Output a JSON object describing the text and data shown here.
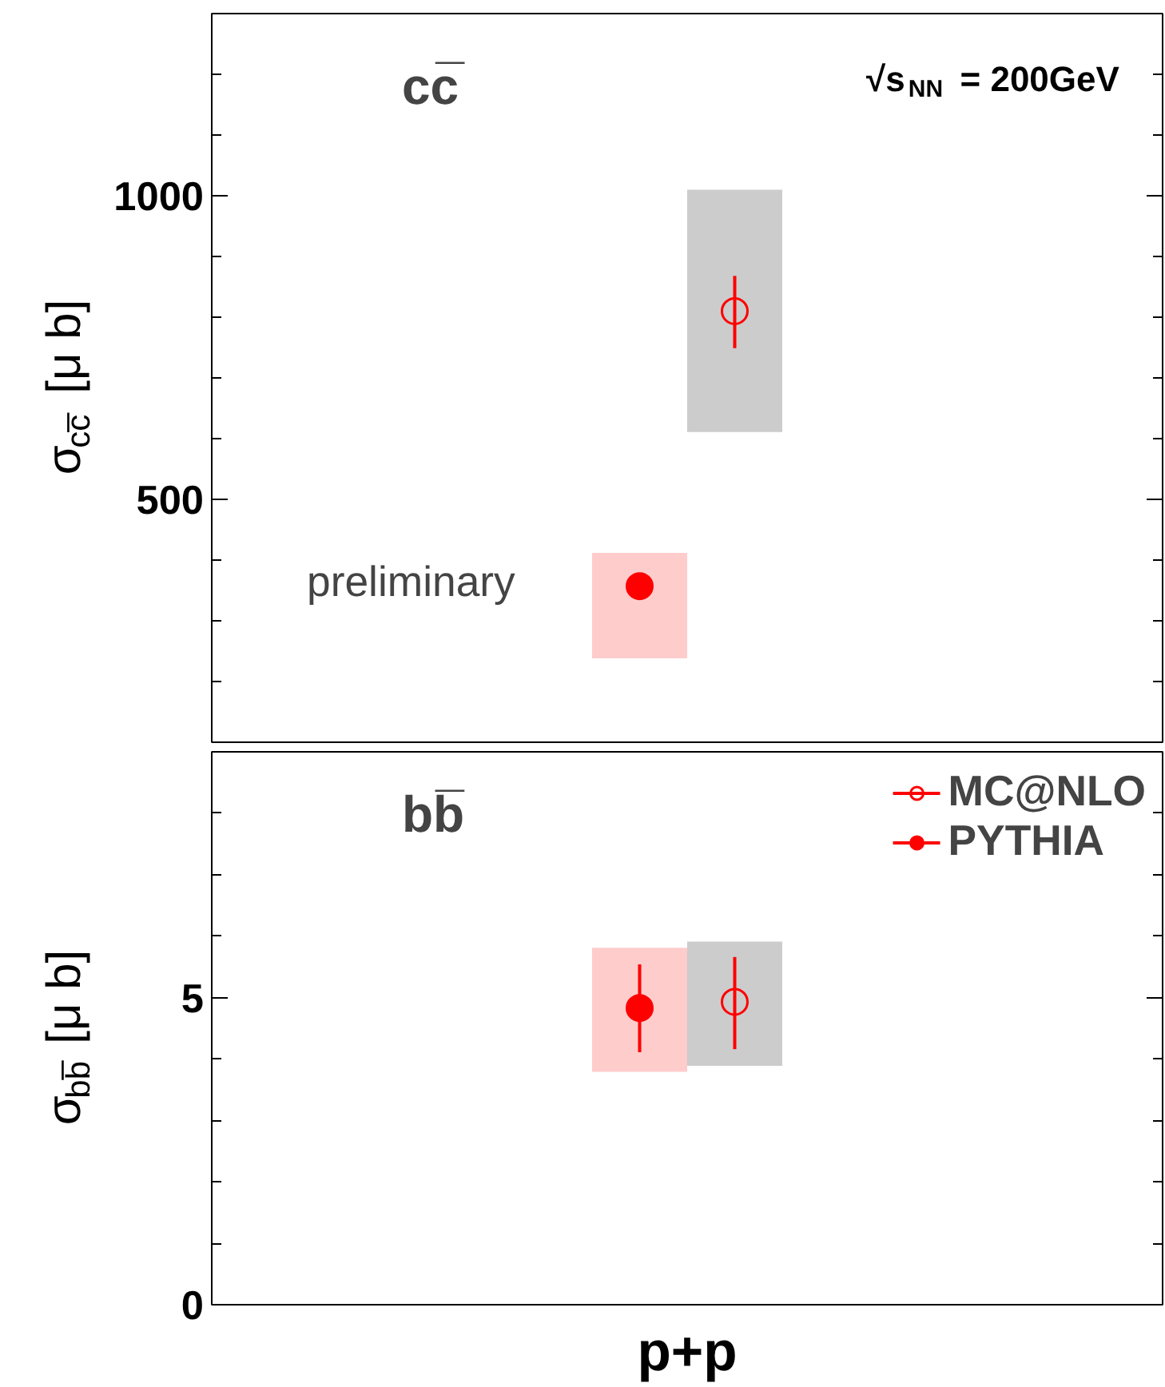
{
  "chart_data": [
    {
      "type": "scatter",
      "title": "cc̅",
      "ylabel": "σ$_{cc̅}$ [μ b]",
      "annotations": [
        "√s$_{NN}$ = 200GeV",
        "preliminary"
      ],
      "categories": [
        "p+p"
      ],
      "ylim": [
        100,
        1300
      ],
      "tick_labels": "y",
      "grid": false,
      "yticks": [
        500,
        1000
      ],
      "series": [
        {
          "type": "bar",
          "color": "#ffcccc",
          "base": [
            238
          ],
          "values": [
            174
          ]
        },
        {
          "type": "bar",
          "color": "#cccccc",
          "base": [
            611
          ],
          "values": [
            399
          ]
        },
        {
          "color": "#ff0000",
          "marker": "circle",
          "x": [
            "p+p"
          ],
          "values": [
            357
          ],
          "errors": [
            [
              340,
              374
            ]
          ]
        },
        {
          "color": "#ff0000",
          "marker": "circle open",
          "x": [
            "p+p"
          ],
          "values": [
            810
          ],
          "errors": [
            [
              749,
              868
            ]
          ]
        }
      ]
    },
    {
      "type": "scatter",
      "title": "bb̅",
      "ylabel": "σ$_{bb̅}$ [μ b]",
      "legend": "top right",
      "categories": [
        "p+p"
      ],
      "ylim": [
        0,
        9
      ],
      "grid": false,
      "yticks": [
        0,
        5
      ],
      "series": [
        {
          "type": "bar",
          "color": "#ffcccc",
          "base": [
            3.79
          ],
          "values": [
            2.02
          ]
        },
        {
          "type": "bar",
          "color": "#cccccc",
          "base": [
            3.89
          ],
          "values": [
            2.02
          ]
        },
        {
          "name": "PYTHIA",
          "color": "#ff0000",
          "marker": "circle",
          "x": [
            "p+p"
          ],
          "values": [
            4.83
          ],
          "errors": [
            [
              4.11,
              5.54
            ]
          ]
        },
        {
          "name": "MC@NLO",
          "color": "#ff0000",
          "marker": "circle open",
          "x": [
            "p+p"
          ],
          "values": [
            4.93
          ],
          "errors": [
            [
              4.16,
              5.66
            ]
          ]
        }
      ]
    }
  ]
}
